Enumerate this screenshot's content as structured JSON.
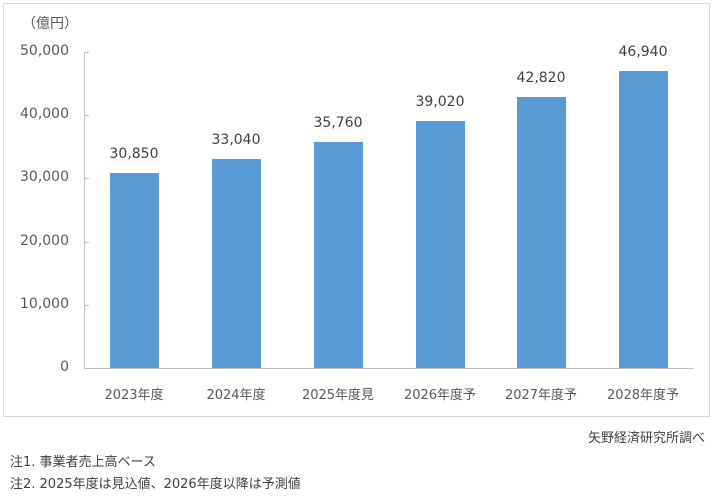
{
  "chart_data": {
    "type": "bar",
    "title": "",
    "unit_label": "（億円）",
    "xlabel": "",
    "ylabel": "（億円）",
    "ylim": [
      0,
      50000
    ],
    "yticks": [
      "50,000",
      "40,000",
      "30,000",
      "20,000",
      "10,000",
      "0"
    ],
    "ytick_values": [
      50000,
      40000,
      30000,
      20000,
      10000,
      0
    ],
    "categories": [
      "2023年度",
      "2024年度",
      "2025年度見",
      "2026年度予",
      "2027年度予",
      "2028年度予"
    ],
    "values": [
      30850,
      33040,
      35760,
      39020,
      42820,
      46940
    ],
    "value_labels": [
      "30,850",
      "33,040",
      "35,760",
      "39,020",
      "42,820",
      "46,940"
    ],
    "bar_color": "#5b9bd5",
    "grid": false,
    "legend": "none"
  },
  "source": "矢野経済研究所調べ",
  "notes": [
    "注1.  事業者売上高ベース",
    "注2.  2025年度は見込値、2026年度以降は予測値"
  ]
}
